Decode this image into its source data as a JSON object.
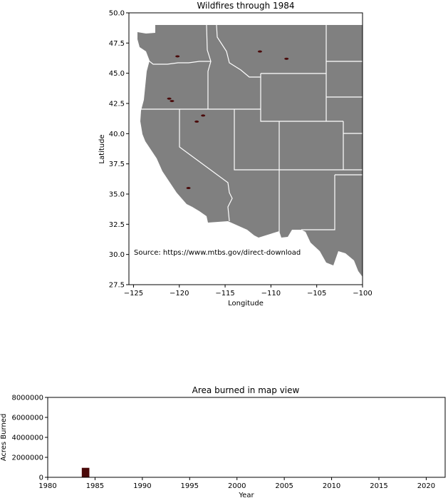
{
  "map_chart": {
    "title": "Wildfires through 1984",
    "xlabel": "Longitude",
    "ylabel": "Latitude",
    "source_note": "Source: https://www.mtbs.gov/direct-download",
    "xlim": [
      -125.5,
      -100
    ],
    "ylim": [
      27.5,
      50
    ],
    "xticks": [
      -125,
      -120,
      -115,
      -110,
      -105,
      -100
    ],
    "yticks": [
      27.5,
      30.0,
      32.5,
      35.0,
      37.5,
      40.0,
      42.5,
      45.0,
      47.5,
      50.0
    ],
    "land_color": "#808080",
    "border_color": "#ffffff",
    "fire_color": "#4a0a0a"
  },
  "chart_data": [
    {
      "type": "scatter",
      "title": "Wildfires through 1984",
      "xlabel": "Longitude",
      "ylabel": "Latitude",
      "xlim": [
        -125.5,
        -100
      ],
      "ylim": [
        27.5,
        50
      ],
      "grid": false,
      "points": [
        {
          "lon": -120.2,
          "lat": 46.4
        },
        {
          "lon": -108.3,
          "lat": 46.2
        },
        {
          "lon": -111.2,
          "lat": 46.8
        },
        {
          "lon": -120.8,
          "lat": 42.7
        },
        {
          "lon": -117.4,
          "lat": 41.5
        },
        {
          "lon": -119.0,
          "lat": 35.5
        },
        {
          "lon": -118.1,
          "lat": 41.0
        },
        {
          "lon": -121.1,
          "lat": 42.9
        }
      ]
    },
    {
      "type": "bar",
      "title": "Area burned in map view",
      "xlabel": "Year",
      "ylabel": "Acres Burned",
      "xlim": [
        1980,
        2022
      ],
      "ylim": [
        0,
        8000000
      ],
      "xticks": [
        1980,
        1985,
        1990,
        1995,
        2000,
        2005,
        2010,
        2015,
        2020
      ],
      "yticks": [
        0,
        2000000,
        4000000,
        6000000,
        8000000
      ],
      "bar_color": "#4a0a0a",
      "grid": false,
      "categories": [
        1984
      ],
      "values": [
        950000
      ]
    }
  ]
}
